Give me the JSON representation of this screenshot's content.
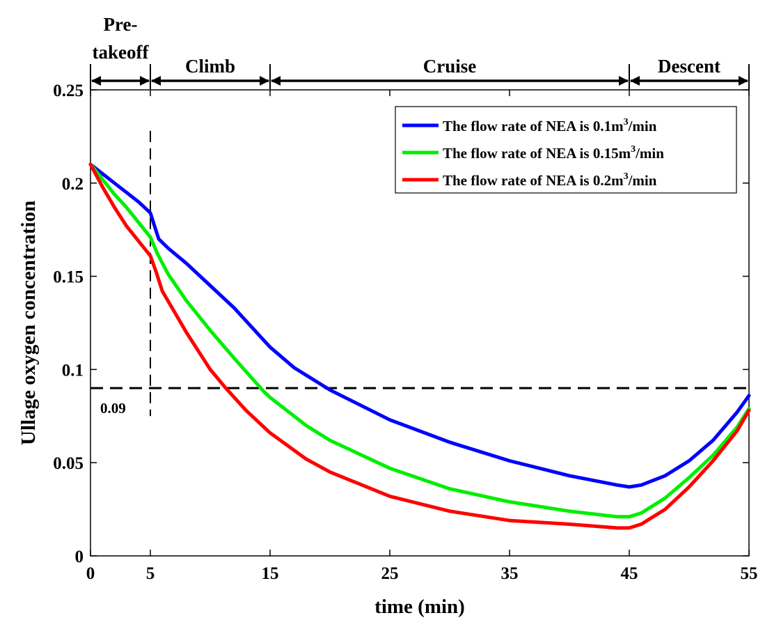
{
  "chart_data": {
    "type": "line",
    "xlabel": "time (min)",
    "ylabel": "Ullage oxygen concentration",
    "xlim": [
      0,
      55
    ],
    "ylim": [
      0,
      0.25
    ],
    "x_ticks": [
      0,
      5,
      15,
      25,
      35,
      45,
      55
    ],
    "x_tick_labels": [
      "0",
      "5",
      "15",
      "25",
      "35",
      "45",
      "55"
    ],
    "y_ticks": [
      0,
      0.05,
      0.1,
      0.15,
      0.2,
      0.25
    ],
    "y_tick_labels": [
      "0",
      "0.05",
      "0.1",
      "0.15",
      "0.2",
      "0.25"
    ],
    "legend_position": "top-right",
    "phases": [
      {
        "label_lines": [
          "Pre-",
          "takeoff"
        ],
        "start": 0,
        "end": 5
      },
      {
        "label_lines": [
          "Climb"
        ],
        "start": 5,
        "end": 15
      },
      {
        "label_lines": [
          "Cruise"
        ],
        "start": 15,
        "end": 45
      },
      {
        "label_lines": [
          "Descent"
        ],
        "start": 45,
        "end": 55
      }
    ],
    "reference_lines": {
      "horizontal": {
        "y": 0.09,
        "label": "0.09",
        "style": "dashed"
      },
      "vertical": {
        "x": 5,
        "y_range": [
          0.075,
          0.228
        ],
        "style": "dashed"
      }
    },
    "series": [
      {
        "name": "The flow rate of NEA is 0.1m³/min",
        "legend_parts": [
          "The flow rate of NEA is 0.1m",
          "3",
          "/min"
        ],
        "color": "#0000ff",
        "points": [
          [
            0,
            0.21
          ],
          [
            1,
            0.205
          ],
          [
            2,
            0.2
          ],
          [
            3,
            0.195
          ],
          [
            4,
            0.19
          ],
          [
            5,
            0.184
          ],
          [
            5.7,
            0.17
          ],
          [
            6.5,
            0.165
          ],
          [
            8,
            0.157
          ],
          [
            10,
            0.145
          ],
          [
            12,
            0.133
          ],
          [
            15,
            0.112
          ],
          [
            17,
            0.101
          ],
          [
            20,
            0.089
          ],
          [
            25,
            0.073
          ],
          [
            30,
            0.061
          ],
          [
            35,
            0.051
          ],
          [
            40,
            0.043
          ],
          [
            44,
            0.038
          ],
          [
            45,
            0.037
          ],
          [
            46,
            0.038
          ],
          [
            48,
            0.043
          ],
          [
            50,
            0.051
          ],
          [
            52,
            0.062
          ],
          [
            54,
            0.077
          ],
          [
            55,
            0.086
          ]
        ]
      },
      {
        "name": "The flow rate of NEA is 0.15m³/min",
        "legend_parts": [
          "The flow rate of NEA is 0.15m",
          "3",
          "/min"
        ],
        "color": "#00ee00",
        "points": [
          [
            0,
            0.21
          ],
          [
            1,
            0.202
          ],
          [
            2,
            0.194
          ],
          [
            3,
            0.187
          ],
          [
            4,
            0.179
          ],
          [
            5,
            0.171
          ],
          [
            5.6,
            0.162
          ],
          [
            6.5,
            0.151
          ],
          [
            8,
            0.137
          ],
          [
            10,
            0.121
          ],
          [
            12,
            0.106
          ],
          [
            14.5,
            0.088
          ],
          [
            15,
            0.085
          ],
          [
            18,
            0.07
          ],
          [
            20,
            0.062
          ],
          [
            25,
            0.047
          ],
          [
            30,
            0.036
          ],
          [
            35,
            0.029
          ],
          [
            40,
            0.024
          ],
          [
            44,
            0.021
          ],
          [
            45,
            0.021
          ],
          [
            46,
            0.023
          ],
          [
            48,
            0.031
          ],
          [
            50,
            0.042
          ],
          [
            52,
            0.054
          ],
          [
            54,
            0.069
          ],
          [
            55,
            0.079
          ]
        ]
      },
      {
        "name": "The flow rate of NEA is 0.2m³/min",
        "legend_parts": [
          "The flow rate of NEA is 0.2m",
          "3",
          "/min"
        ],
        "color": "#ff0000",
        "points": [
          [
            0,
            0.21
          ],
          [
            1,
            0.198
          ],
          [
            2,
            0.187
          ],
          [
            3,
            0.177
          ],
          [
            4,
            0.169
          ],
          [
            5,
            0.161
          ],
          [
            5.5,
            0.152
          ],
          [
            6,
            0.142
          ],
          [
            7,
            0.131
          ],
          [
            8,
            0.12
          ],
          [
            10,
            0.1
          ],
          [
            11.3,
            0.09
          ],
          [
            13,
            0.078
          ],
          [
            15,
            0.066
          ],
          [
            18,
            0.052
          ],
          [
            20,
            0.045
          ],
          [
            25,
            0.032
          ],
          [
            30,
            0.024
          ],
          [
            35,
            0.019
          ],
          [
            40,
            0.017
          ],
          [
            44,
            0.015
          ],
          [
            45,
            0.015
          ],
          [
            46,
            0.017
          ],
          [
            48,
            0.025
          ],
          [
            50,
            0.037
          ],
          [
            52,
            0.051
          ],
          [
            54,
            0.067
          ],
          [
            55,
            0.078
          ]
        ]
      }
    ]
  }
}
